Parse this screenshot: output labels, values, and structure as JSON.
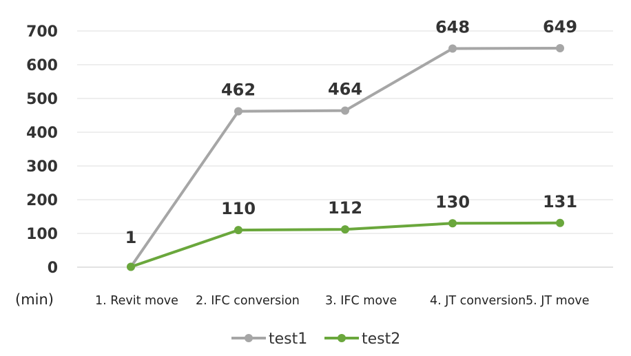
{
  "chart_data": {
    "type": "line",
    "title": "",
    "ylabel": "(min)",
    "categories": [
      "1. Revit move",
      "2. IFC conversion",
      "3. IFC move",
      "4. JT conversion",
      "5. JT move"
    ],
    "yticks": [
      "0",
      "100",
      "200",
      "300",
      "400",
      "500",
      "600",
      "700"
    ],
    "ylim": [
      0,
      700
    ],
    "grid": true,
    "legend_position": "bottom",
    "series": [
      {
        "name": "test1",
        "color": "#a6a6a6",
        "values": [
          1,
          462,
          464,
          648,
          649
        ],
        "labels": [
          "1",
          "462",
          "464",
          "648",
          "649"
        ]
      },
      {
        "name": "test2",
        "color": "#6aa73c",
        "values": [
          1,
          110,
          112,
          130,
          131
        ],
        "labels": [
          "",
          "110",
          "112",
          "130",
          "131"
        ]
      }
    ]
  }
}
